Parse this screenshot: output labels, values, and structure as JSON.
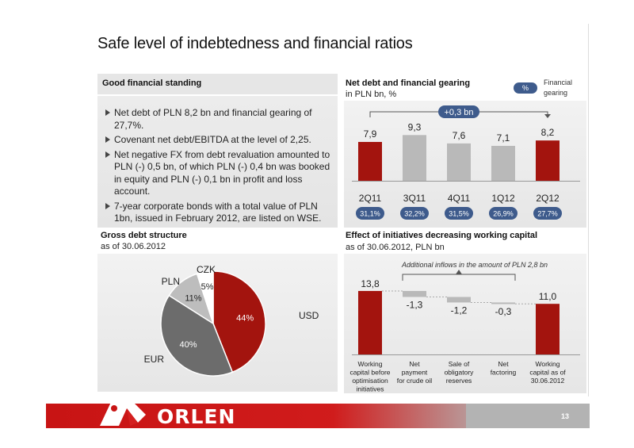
{
  "page": {
    "title": "Safe level of indebtedness and financial ratios",
    "page_number": "13",
    "logo_text": "ORLEN",
    "brand_color": "#c81414"
  },
  "good_standing": {
    "title": "Good financial standing",
    "bullets": [
      "Net debt of PLN 8,2 bn and financial gearing of 27,7%.",
      "Covenant net debt/EBITDA at the level of 2,25.",
      "Net negative FX from debt revaluation amounted to PLN (-) 0,5 bn, of which PLN (-) 0,4 bn was booked in equity and PLN (-) 0,1 bn in profit and loss account.",
      "7-year corporate bonds with a total value of PLN 1bn, issued in February 2012, are listed on WSE."
    ]
  },
  "net_debt": {
    "title": "Net debt and financial gearing",
    "subtitle": "in PLN bn, %",
    "legend_pill": "%",
    "legend_text": "Financial gearing",
    "annotation": "+0,3 bn"
  },
  "gross_debt": {
    "title": "Gross debt structure",
    "subtitle": "as of 30.06.2012"
  },
  "working_capital": {
    "title": "Effect of initiatives decreasing working capital",
    "subtitle": "as of 30.06.2012, PLN bn",
    "annotation": "Additional inflows in the amount of PLN 2,8 bn"
  },
  "chart_data": [
    {
      "type": "bar",
      "categories": [
        "2Q11",
        "3Q11",
        "4Q11",
        "1Q12",
        "2Q12"
      ],
      "values": [
        7.9,
        9.3,
        7.6,
        7.1,
        8.2
      ],
      "value_labels": [
        "7,9",
        "9,3",
        "7,6",
        "7,1",
        "8,2"
      ],
      "gearing_labels": [
        "31,1%",
        "32,2%",
        "31,5%",
        "26,9%",
        "27,7%"
      ],
      "bar_colors": [
        "#a3140e",
        "#b9b9b9",
        "#b9b9b9",
        "#b9b9b9",
        "#a3140e"
      ],
      "pill_color": "#3e5b8c"
    },
    {
      "type": "pie",
      "labels": [
        "USD",
        "EUR",
        "PLN",
        "CZK"
      ],
      "values": [
        44,
        40,
        11,
        5
      ],
      "value_labels": [
        "44%",
        "40%",
        "11%",
        "5%"
      ],
      "colors": [
        "#a3140e",
        "#6c6c6c",
        "#bdbdbd",
        "#ffffff"
      ]
    },
    {
      "type": "bar",
      "subtype": "waterfall",
      "categories": [
        "Working capital before optimisation initiatives",
        "Net payment for crude oil",
        "Sale of obligatory reserves",
        "Net factoring",
        "Working capital as of 30.06.2012"
      ],
      "category_lines": [
        [
          "Working",
          "capital before",
          "optimisation",
          "initiatives"
        ],
        [
          "Net",
          "payment",
          "for crude oil"
        ],
        [
          "Sale of",
          "obligatory",
          "reserves"
        ],
        [
          "Net",
          "factoring"
        ],
        [
          "Working",
          "capital as of",
          "30.06.2012"
        ]
      ],
      "values": [
        13.8,
        -1.3,
        -1.2,
        -0.3,
        11.0
      ],
      "value_labels": [
        "13,8",
        "-1,3",
        "-1,2",
        "-0,3",
        "11,0"
      ],
      "total_colors": "#a3140e",
      "delta_color": "#b9b9b9"
    }
  ]
}
